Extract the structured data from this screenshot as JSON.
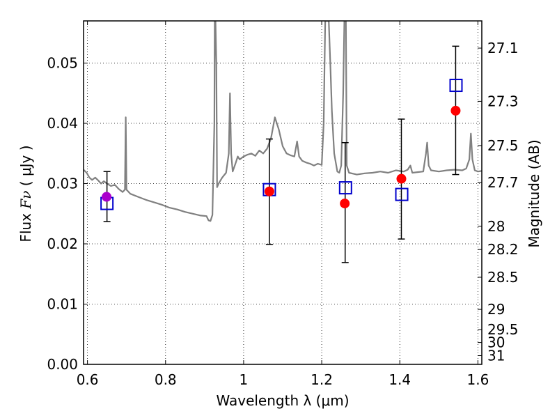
{
  "chart_data": {
    "type": "scatter",
    "xlabel": "Wavelength  λ (μm)",
    "ylabel_prefix": "Flux ",
    "ylabel_symbol": "Fν",
    "ylabel_suffix": " ( μJy )",
    "y2label": "Magnitude (AB)",
    "xlim": [
      0.59,
      1.61
    ],
    "ylim": [
      0.0,
      0.057
    ],
    "grid": true,
    "x_ticks": [
      {
        "value": 0.6,
        "label": "0.6"
      },
      {
        "value": 0.8,
        "label": "0.8"
      },
      {
        "value": 1.0,
        "label": "1"
      },
      {
        "value": 1.2,
        "label": "1.2"
      },
      {
        "value": 1.4,
        "label": "1.4"
      },
      {
        "value": 1.6,
        "label": "1.6"
      }
    ],
    "y_ticks": [
      {
        "value": 0.0,
        "label": "0.00"
      },
      {
        "value": 0.01,
        "label": "0.01"
      },
      {
        "value": 0.02,
        "label": "0.02"
      },
      {
        "value": 0.03,
        "label": "0.03"
      },
      {
        "value": 0.04,
        "label": "0.04"
      },
      {
        "value": 0.05,
        "label": "0.05"
      }
    ],
    "mag_ticks": [
      {
        "mag": 27.1,
        "label": "27.1"
      },
      {
        "mag": 27.3,
        "label": "27.3"
      },
      {
        "mag": 27.5,
        "label": "27.5"
      },
      {
        "mag": 27.7,
        "label": "27.7"
      },
      {
        "mag": 28.0,
        "label": "28"
      },
      {
        "mag": 28.2,
        "label": "28.2"
      },
      {
        "mag": 28.5,
        "label": "28.5"
      },
      {
        "mag": 29.0,
        "label": "29"
      },
      {
        "mag": 29.5,
        "label": "29.5"
      },
      {
        "mag": 30.0,
        "label": "30"
      },
      {
        "mag": 31.0,
        "label": "31"
      }
    ],
    "series": [
      {
        "marker": "line",
        "color": "#808080",
        "points": [
          [
            0.59,
            0.0323
          ],
          [
            0.598,
            0.0318
          ],
          [
            0.605,
            0.031
          ],
          [
            0.612,
            0.0306
          ],
          [
            0.62,
            0.031
          ],
          [
            0.628,
            0.0305
          ],
          [
            0.635,
            0.03
          ],
          [
            0.642,
            0.0304
          ],
          [
            0.65,
            0.03
          ],
          [
            0.66,
            0.0296
          ],
          [
            0.67,
            0.0298
          ],
          [
            0.68,
            0.0291
          ],
          [
            0.69,
            0.0286
          ],
          [
            0.696,
            0.029
          ],
          [
            0.698,
            0.041
          ],
          [
            0.7,
            0.029
          ],
          [
            0.71,
            0.0283
          ],
          [
            0.73,
            0.0278
          ],
          [
            0.75,
            0.0273
          ],
          [
            0.77,
            0.0269
          ],
          [
            0.79,
            0.0265
          ],
          [
            0.81,
            0.026
          ],
          [
            0.83,
            0.0257
          ],
          [
            0.85,
            0.0253
          ],
          [
            0.87,
            0.025
          ],
          [
            0.89,
            0.0247
          ],
          [
            0.905,
            0.0246
          ],
          [
            0.91,
            0.0239
          ],
          [
            0.915,
            0.0238
          ],
          [
            0.92,
            0.0248
          ],
          [
            0.925,
            0.04
          ],
          [
            0.926,
            0.057
          ],
          [
            0.928,
            0.057
          ],
          [
            0.93,
            0.05
          ],
          [
            0.932,
            0.0294
          ],
          [
            0.936,
            0.03
          ],
          [
            0.945,
            0.031
          ],
          [
            0.955,
            0.0318
          ],
          [
            0.962,
            0.035
          ],
          [
            0.965,
            0.045
          ],
          [
            0.968,
            0.035
          ],
          [
            0.972,
            0.032
          ],
          [
            0.98,
            0.0335
          ],
          [
            0.985,
            0.0345
          ],
          [
            0.99,
            0.034
          ],
          [
            1.0,
            0.0345
          ],
          [
            1.01,
            0.0348
          ],
          [
            1.02,
            0.035
          ],
          [
            1.03,
            0.0346
          ],
          [
            1.04,
            0.0355
          ],
          [
            1.05,
            0.035
          ],
          [
            1.06,
            0.0358
          ],
          [
            1.07,
            0.0375
          ],
          [
            1.08,
            0.041
          ],
          [
            1.09,
            0.039
          ],
          [
            1.1,
            0.0362
          ],
          [
            1.11,
            0.035
          ],
          [
            1.12,
            0.0347
          ],
          [
            1.13,
            0.0345
          ],
          [
            1.137,
            0.037
          ],
          [
            1.142,
            0.0345
          ],
          [
            1.15,
            0.0338
          ],
          [
            1.16,
            0.0335
          ],
          [
            1.17,
            0.0333
          ],
          [
            1.18,
            0.033
          ],
          [
            1.19,
            0.0333
          ],
          [
            1.2,
            0.0331
          ],
          [
            1.205,
            0.04
          ],
          [
            1.209,
            0.057
          ],
          [
            1.218,
            0.057
          ],
          [
            1.222,
            0.05
          ],
          [
            1.226,
            0.042
          ],
          [
            1.232,
            0.035
          ],
          [
            1.24,
            0.032
          ],
          [
            1.245,
            0.0318
          ],
          [
            1.25,
            0.033
          ],
          [
            1.255,
            0.045
          ],
          [
            1.258,
            0.057
          ],
          [
            1.262,
            0.057
          ],
          [
            1.264,
            0.033
          ],
          [
            1.27,
            0.0318
          ],
          [
            1.29,
            0.0315
          ],
          [
            1.31,
            0.0317
          ],
          [
            1.33,
            0.0318
          ],
          [
            1.35,
            0.032
          ],
          [
            1.37,
            0.0318
          ],
          [
            1.39,
            0.0322
          ],
          [
            1.41,
            0.032
          ],
          [
            1.42,
            0.0323
          ],
          [
            1.427,
            0.033
          ],
          [
            1.432,
            0.0318
          ],
          [
            1.445,
            0.0319
          ],
          [
            1.46,
            0.032
          ],
          [
            1.467,
            0.035
          ],
          [
            1.47,
            0.0368
          ],
          [
            1.474,
            0.033
          ],
          [
            1.48,
            0.0322
          ],
          [
            1.5,
            0.032
          ],
          [
            1.52,
            0.0322
          ],
          [
            1.54,
            0.0323
          ],
          [
            1.56,
            0.0322
          ],
          [
            1.57,
            0.0325
          ],
          [
            1.578,
            0.034
          ],
          [
            1.582,
            0.0383
          ],
          [
            1.586,
            0.034
          ],
          [
            1.592,
            0.0322
          ],
          [
            1.6,
            0.032
          ],
          [
            1.61,
            0.0321
          ]
        ]
      },
      {
        "marker": "open-square",
        "color": "#0000cc",
        "points": [
          [
            0.65,
            0.0267
          ],
          [
            1.066,
            0.029
          ],
          [
            1.261,
            0.0293
          ],
          [
            1.405,
            0.0282
          ],
          [
            1.544,
            0.0463
          ]
        ]
      },
      {
        "marker": "circle",
        "color": "#ff0000",
        "points": [
          [
            1.066,
            0.0287
          ],
          [
            1.259,
            0.0267
          ],
          [
            1.404,
            0.0308
          ],
          [
            1.543,
            0.0421
          ]
        ]
      },
      {
        "marker": "circle",
        "color": "#aa00cc",
        "points": [
          [
            0.649,
            0.0278
          ]
        ]
      }
    ],
    "error_bars": [
      {
        "x": 0.65,
        "low": 0.0237,
        "high": 0.032
      },
      {
        "x": 1.066,
        "low": 0.0199,
        "high": 0.0374
      },
      {
        "x": 1.26,
        "low": 0.0169,
        "high": 0.0368
      },
      {
        "x": 1.404,
        "low": 0.0208,
        "high": 0.0407
      },
      {
        "x": 1.543,
        "low": 0.0315,
        "high": 0.0528
      }
    ]
  }
}
